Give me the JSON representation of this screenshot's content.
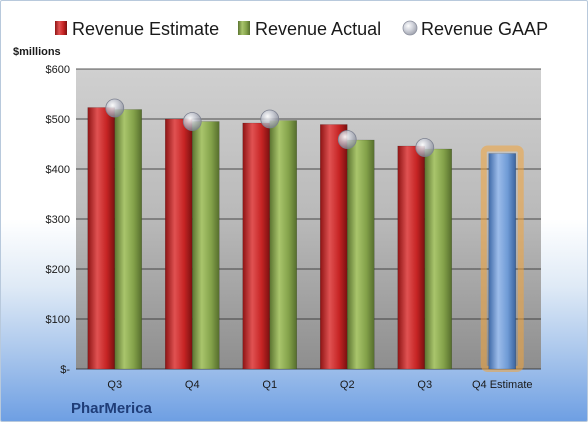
{
  "chart_data": {
    "type": "bar",
    "company": "PharMerica",
    "unit_label": "$millions",
    "categories": [
      "Q3",
      "Q4",
      "Q1",
      "Q2",
      "Q3",
      "Q4 Estimate"
    ],
    "series": [
      {
        "name": "Revenue Estimate",
        "kind": "bar",
        "color": "#cc2a2a",
        "values": [
          523,
          500,
          492,
          489,
          446,
          null
        ]
      },
      {
        "name": "Revenue Actual",
        "kind": "bar",
        "color": "#8fae55",
        "values": [
          519,
          495,
          497,
          458,
          440,
          null
        ]
      },
      {
        "name": "Revenue GAAP",
        "kind": "marker",
        "color": "#b5b8c4",
        "values": [
          522,
          495,
          500,
          459,
          443,
          null
        ]
      }
    ],
    "forecast": {
      "category_index": 5,
      "value": 431,
      "color": "#6f9bd6",
      "highlight": "#f2a43a"
    },
    "y_ticks": [
      {
        "value": 0,
        "label": "$-"
      },
      {
        "value": 100,
        "label": "$100"
      },
      {
        "value": 200,
        "label": "$200"
      },
      {
        "value": 300,
        "label": "$300"
      },
      {
        "value": 400,
        "label": "$400"
      },
      {
        "value": 500,
        "label": "$500"
      },
      {
        "value": 600,
        "label": "$600"
      }
    ],
    "ylim": [
      0,
      600
    ],
    "grid": true,
    "legend_position": "top"
  }
}
